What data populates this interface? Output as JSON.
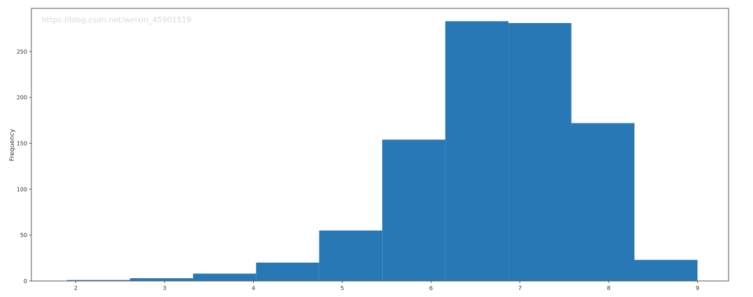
{
  "chart_data": {
    "type": "histogram",
    "title": "",
    "xlabel": "",
    "ylabel": "Frequency",
    "bin_edges": [
      1.9,
      2.61,
      3.32,
      4.03,
      4.74,
      5.45,
      6.16,
      6.87,
      7.58,
      8.29,
      9.0
    ],
    "values": [
      1,
      3,
      8,
      20,
      55,
      154,
      283,
      281,
      172,
      23
    ],
    "xlim": [
      1.5,
      9.35
    ],
    "ylim": [
      0,
      297
    ],
    "xticks": [
      2,
      3,
      4,
      5,
      6,
      7,
      8,
      9
    ],
    "yticks": [
      0,
      50,
      100,
      150,
      200,
      250
    ],
    "grid": false,
    "bar_color": "#2878b5"
  },
  "watermark": "https://blog.csdn.net/weixin_45901519"
}
